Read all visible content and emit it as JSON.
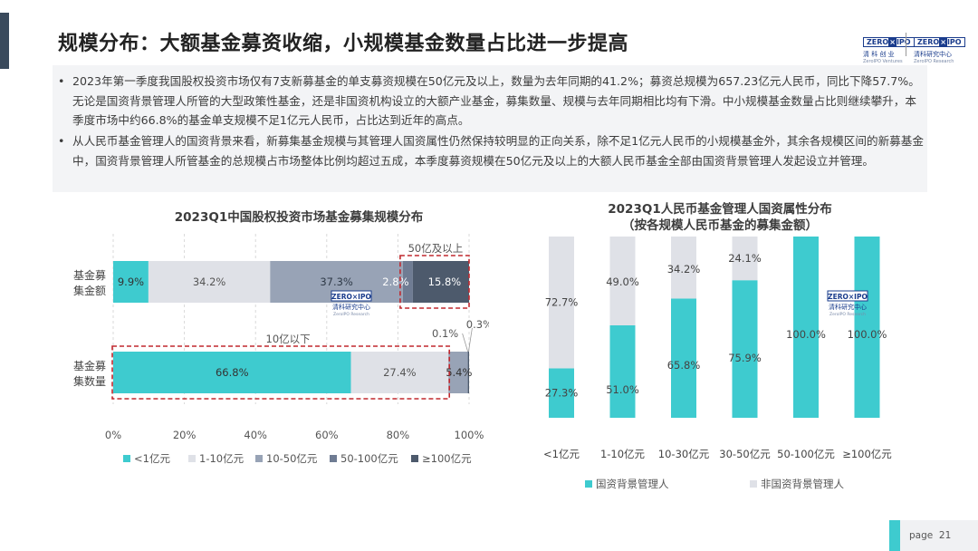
{
  "title": "规模分布：大额基金募资收缩，小规模基金数量占比进一步提高",
  "logos": [
    {
      "brand_a": "ZERO",
      "brand_b": "IPO",
      "cn": "清 科 创 业",
      "en": "ZeroIPO Ventures"
    },
    {
      "brand_a": "ZERO",
      "brand_b": "IPO",
      "cn": "清科研究中心",
      "en": "ZeroIPO Research"
    }
  ],
  "bullets": [
    "2023年第一季度我国股权投资市场仅有7支新募基金的单支募资规模在50亿元及以上，数量为去年同期的41.2%；募资总规模为657.23亿元人民币，同比下降57.7%。无论是国资背景管理人所管的大型政策性基金，还是非国资机构设立的大额产业基金，募集数量、规模与去年同期相比均有下滑。中小规模基金数量占比则继续攀升，本季度市场中约66.8%的基金单支规模不足1亿元人民币，占比达到近年的高点。",
    "从人民币基金管理人的国资背景来看，新募集基金规模与其管理人国资属性仍然保持较明显的正向关系，除不足1亿元人民币的小规模基金外，其余各规模区间的新募基金中，国资背景管理人所管基金的总规模占市场整体比例均超过五成，本季度募资规模在50亿元及以上的大额人民币基金全部由国资背景管理人发起设立并管理。"
  ],
  "page": {
    "label": "page",
    "number": "21"
  },
  "chart_data": [
    {
      "type": "bar",
      "orientation": "horizontal",
      "stacked": true,
      "title": "2023Q1中国股权投资市场基金募集规模分布",
      "categories": [
        "基金募集金额",
        "基金募集数量"
      ],
      "category_labels": [
        [
          "基金募",
          "集金额"
        ],
        [
          "基金募",
          "集数量"
        ]
      ],
      "series": [
        {
          "name": "<1亿元",
          "color": "#3ecbcf",
          "values": [
            9.9,
            66.8
          ],
          "labels": [
            "9.9%",
            "66.8%"
          ]
        },
        {
          "name": "1-10亿元",
          "color": "#dfe1e7",
          "values": [
            34.2,
            27.4
          ],
          "labels": [
            "34.2%",
            "27.4%"
          ]
        },
        {
          "name": "10-50亿元",
          "color": "#98a3b6",
          "values": [
            37.3,
            5.4
          ],
          "labels": [
            "37.3%",
            "5.4%"
          ]
        },
        {
          "name": "50-100亿元",
          "color": "#6f7c93",
          "values": [
            2.8,
            0.1
          ],
          "labels": [
            "2.8%",
            "0.1%"
          ]
        },
        {
          "name": "≥100亿元",
          "color": "#4d5a6c",
          "values": [
            15.8,
            0.3
          ],
          "labels": [
            "15.8%",
            "0.3%"
          ]
        }
      ],
      "xticks": [
        "0%",
        "20%",
        "40%",
        "60%",
        "80%",
        "100%"
      ],
      "xlim": [
        0,
        100
      ],
      "grid": true,
      "legend": "bottom",
      "annotations": [
        "50亿及以上",
        "10亿以下"
      ],
      "watermark": {
        "brand_a": "ZERO",
        "brand_b": "IPO",
        "cn": "清科研究中心",
        "en": "ZeroIPO Research"
      }
    },
    {
      "type": "bar",
      "stacked": true,
      "title": "2023Q1人民币基金管理人国资属性分布",
      "subtitle": "（按各规模人民币基金的募集金额）",
      "categories": [
        "<1亿元",
        "1-10亿元",
        "10-30亿元",
        "30-50亿元",
        "50-100亿元",
        "≥100亿元"
      ],
      "series": [
        {
          "name": "国资背景管理人",
          "color": "#3ecbcf",
          "values": [
            27.3,
            51.0,
            65.8,
            75.9,
            100.0,
            100.0
          ],
          "labels": [
            "27.3%",
            "51.0%",
            "65.8%",
            "75.9%",
            "100.0%",
            "100.0%"
          ]
        },
        {
          "name": "非国资背景管理人",
          "color": "#dfe1e7",
          "values": [
            72.7,
            49.0,
            34.2,
            24.1,
            0,
            0
          ],
          "labels": [
            "72.7%",
            "49.0%",
            "34.2%",
            "24.1%",
            "",
            ""
          ]
        }
      ],
      "ylim": [
        0,
        100
      ],
      "legend": "bottom",
      "watermark": {
        "brand_a": "ZERO",
        "brand_b": "IPO",
        "cn": "清科研究中心",
        "en": "ZeroIPO Research"
      }
    }
  ]
}
